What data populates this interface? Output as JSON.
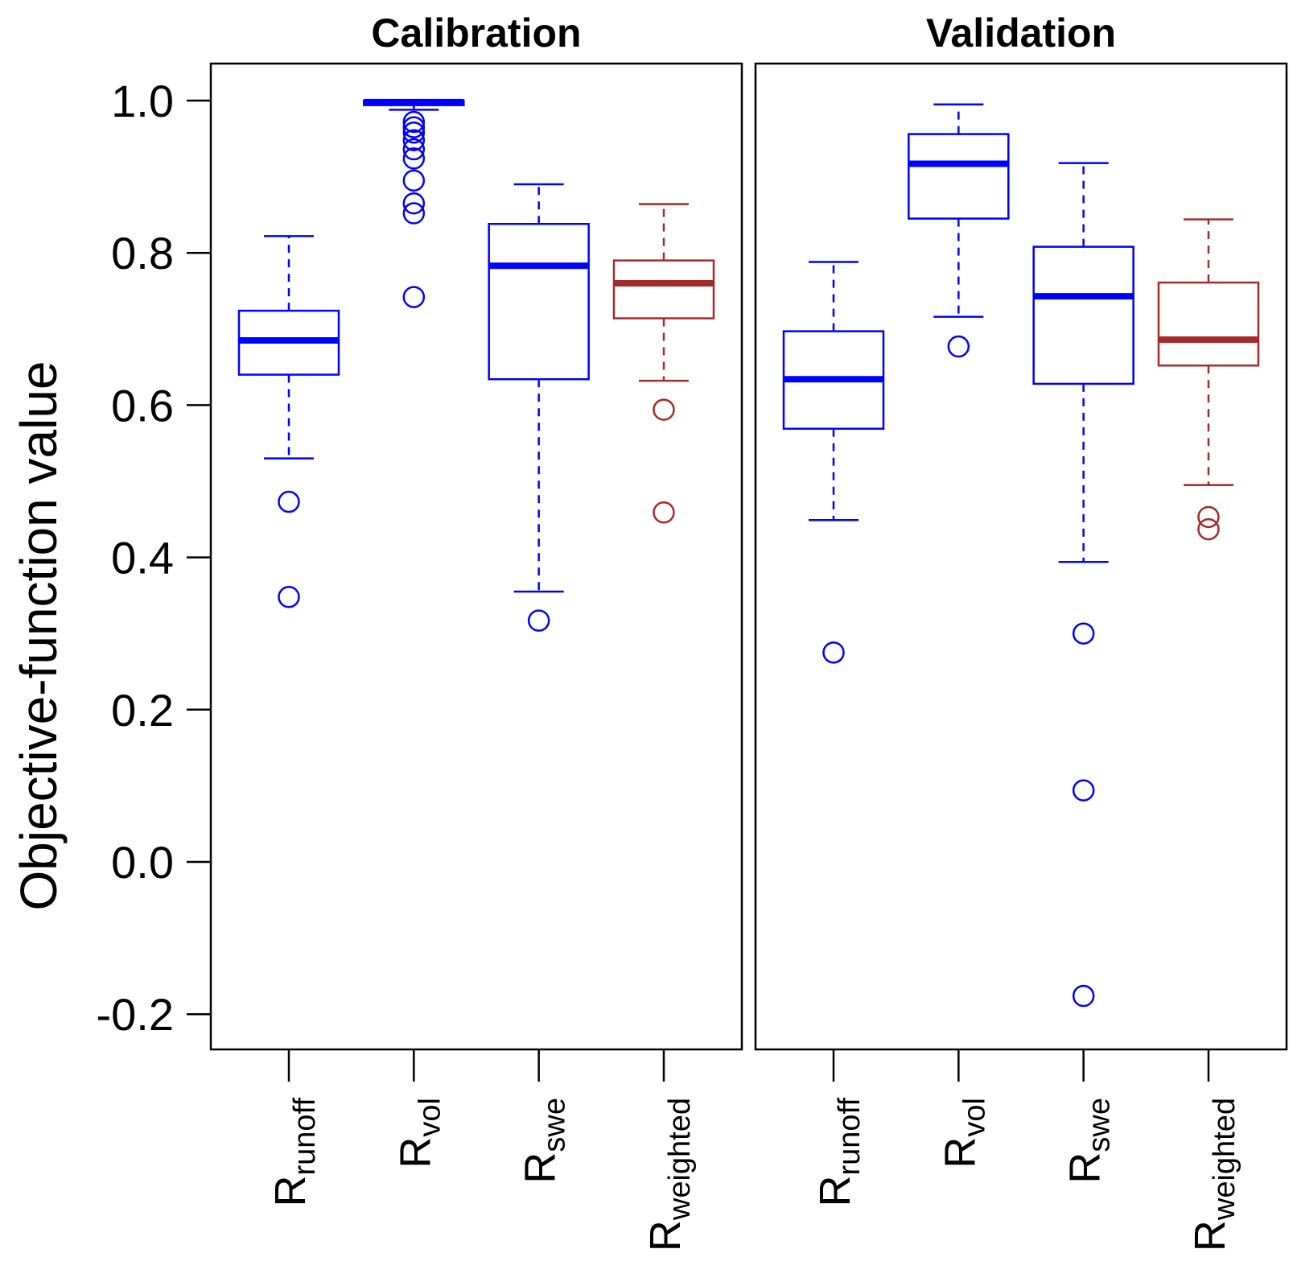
{
  "chart_data": {
    "type": "boxplot",
    "ylabel": "Objective-function value",
    "ylim": [
      -0.25,
      1.05
    ],
    "yticks": [
      -0.2,
      0.0,
      0.2,
      0.4,
      0.6,
      0.8,
      1.0
    ],
    "ytick_labels": [
      "-0.2",
      "0.0",
      "0.2",
      "0.4",
      "0.6",
      "0.8",
      "1.0"
    ],
    "category_labels": [
      {
        "main": "R",
        "sub": "runoff"
      },
      {
        "main": "R",
        "sub": "vol"
      },
      {
        "main": "R",
        "sub": "swe"
      },
      {
        "main": "R",
        "sub": "weighted"
      }
    ],
    "colors": {
      "blue": "#0000ff",
      "brown": "#a52a2a",
      "axis": "#000000"
    },
    "panels": [
      {
        "title": "Calibration",
        "boxes": [
          {
            "category": "Rrunoff",
            "color": "#0000ff",
            "whisker_low": 0.53,
            "q1": 0.64,
            "median": 0.685,
            "q3": 0.724,
            "whisker_high": 0.822,
            "outliers": [
              0.473,
              0.348
            ]
          },
          {
            "category": "Rvol",
            "color": "#0000ff",
            "whisker_low": 0.988,
            "q1": 0.994,
            "median": 0.998,
            "q3": 1.0,
            "whisker_high": 1.0,
            "outliers": [
              0.972,
              0.965,
              0.958,
              0.948,
              0.936,
              0.924,
              0.895,
              0.865,
              0.852,
              0.742
            ]
          },
          {
            "category": "Rswe",
            "color": "#0000ff",
            "whisker_low": 0.355,
            "q1": 0.634,
            "median": 0.783,
            "q3": 0.838,
            "whisker_high": 0.89,
            "outliers": [
              0.317
            ]
          },
          {
            "category": "Rweighted",
            "color": "#a52a2a",
            "whisker_low": 0.632,
            "q1": 0.714,
            "median": 0.76,
            "q3": 0.79,
            "whisker_high": 0.864,
            "outliers": [
              0.594,
              0.459
            ]
          }
        ]
      },
      {
        "title": "Validation",
        "boxes": [
          {
            "category": "Rrunoff",
            "color": "#0000ff",
            "whisker_low": 0.449,
            "q1": 0.569,
            "median": 0.634,
            "q3": 0.697,
            "whisker_high": 0.788,
            "outliers": [
              0.275
            ]
          },
          {
            "category": "Rvol",
            "color": "#0000ff",
            "whisker_low": 0.716,
            "q1": 0.845,
            "median": 0.917,
            "q3": 0.956,
            "whisker_high": 0.995,
            "outliers": [
              0.677
            ]
          },
          {
            "category": "Rswe",
            "color": "#0000ff",
            "whisker_low": 0.394,
            "q1": 0.628,
            "median": 0.743,
            "q3": 0.808,
            "whisker_high": 0.918,
            "outliers": [
              0.3,
              0.094,
              -0.176
            ]
          },
          {
            "category": "Rweighted",
            "color": "#a52a2a",
            "whisker_low": 0.495,
            "q1": 0.652,
            "median": 0.686,
            "q3": 0.761,
            "whisker_high": 0.844,
            "outliers": [
              0.453,
              0.437
            ]
          }
        ]
      }
    ]
  }
}
